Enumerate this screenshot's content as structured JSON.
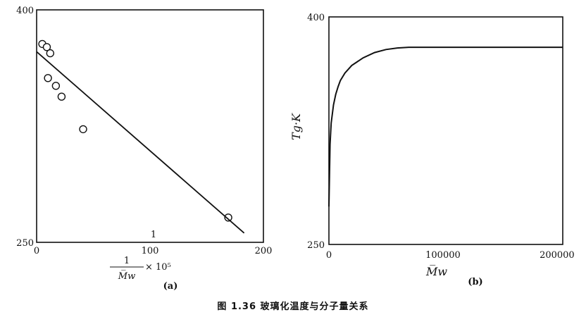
{
  "chart_data": [
    {
      "type": "scatter",
      "panel_label": "(a)",
      "xlabel_numerator": "1",
      "xlabel_denominator": "M̅w",
      "xlabel_factor": "× 10⁵",
      "ylabel": "",
      "xlim": [
        0,
        200
      ],
      "ylim": [
        250,
        400
      ],
      "x_ticks": [
        0,
        100,
        200
      ],
      "y_ticks": [
        250,
        400
      ],
      "minor_tick_label": "1",
      "points": [
        {
          "x": 5,
          "y": 378
        },
        {
          "x": 9,
          "y": 376
        },
        {
          "x": 12,
          "y": 372
        },
        {
          "x": 10,
          "y": 356
        },
        {
          "x": 17,
          "y": 351
        },
        {
          "x": 22,
          "y": 344
        },
        {
          "x": 41,
          "y": 323
        },
        {
          "x": 169,
          "y": 266
        }
      ],
      "fit_line": [
        {
          "x": 0,
          "y": 373
        },
        {
          "x": 183,
          "y": 256
        }
      ]
    },
    {
      "type": "line",
      "panel_label": "(b)",
      "xlabel": "M̅w",
      "ylabel": "Tg·K",
      "xlim": [
        0,
        205000
      ],
      "ylim": [
        250,
        400
      ],
      "x_ticks": [
        0,
        100000,
        200000
      ],
      "x_tick_labels": [
        "0",
        "100000",
        "200000"
      ],
      "y_ticks": [
        250,
        400
      ],
      "series": [
        {
          "x": [
            0,
            1000,
            2000,
            4000,
            6000,
            8000,
            10000,
            14000,
            20000,
            30000,
            40000,
            50000,
            60000,
            70000,
            100000,
            150000,
            205000
          ],
          "y": [
            275,
            316,
            330,
            342,
            349,
            354,
            358,
            363,
            368,
            373,
            376.5,
            378.5,
            379.5,
            380,
            380,
            380,
            380
          ]
        }
      ]
    }
  ],
  "caption": "图 1.36   玻璃化温度与分子量关系"
}
